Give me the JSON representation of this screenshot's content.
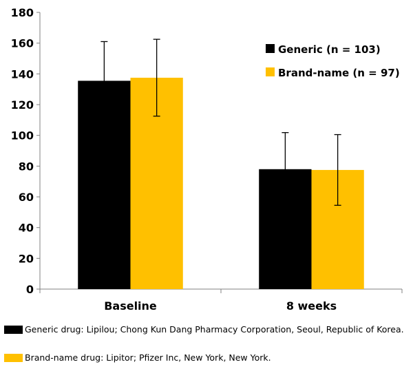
{
  "chart_data": {
    "type": "bar",
    "categories": [
      "Baseline",
      "8 weeks"
    ],
    "series": [
      {
        "name": "Generic (n = 103)",
        "values": [
          135.5,
          78
        ],
        "error": [
          25.5,
          23.8
        ],
        "color": "#000000"
      },
      {
        "name": "Brand-name (n = 97)",
        "values": [
          137.5,
          77.5
        ],
        "error": [
          25,
          23
        ],
        "color": "#FFC000"
      }
    ],
    "ylim": [
      0,
      180
    ],
    "yticks": [
      0,
      20,
      40,
      60,
      80,
      100,
      120,
      140,
      160,
      180
    ],
    "grid": false,
    "legend_position": "top-right",
    "title": "",
    "xlabel": "",
    "ylabel": ""
  },
  "footnotes": [
    {
      "text": "Generic drug: Lipilou; Chong Kun Dang Pharmacy Corporation, Seoul, Republic of Korea.",
      "swatch_color": "#000000"
    },
    {
      "text": "Brand-name drug: Lipitor; Pfizer Inc, New York, New York.",
      "swatch_color": "#FFC000"
    }
  ]
}
